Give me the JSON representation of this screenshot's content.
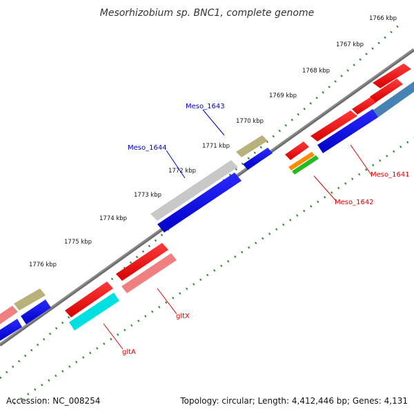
{
  "title": "Mesorhizobium sp. BNC1, complete genome",
  "footer": {
    "accession": "Accession: NC_008254",
    "summary": "Topology: circular; Length: 4,412,446 bp; Genes: 4,131"
  },
  "ticks": [
    "1766 kbp",
    "1767 kbp",
    "1768 kbp",
    "1769 kbp",
    "1770 kbp",
    "1771 kbp",
    "1772 kbp",
    "1773 kbp",
    "1774 kbp",
    "1775 kbp",
    "1776 kbp"
  ],
  "gene_labels": {
    "meso1643": "Meso_1643",
    "meso1644": "Meso_1644",
    "meso1641": "Meso_1641",
    "meso1642": "Meso_1642",
    "gltX": "gltX",
    "gltA": "gltA"
  },
  "colors": {
    "reverse_cds": "#ff0000",
    "forward_cds": "#0000ff",
    "backbone": "#7a7a7a",
    "dots": "#2e8b2e",
    "label_blue": "#0000cc",
    "label_red": "#dd0000"
  }
}
